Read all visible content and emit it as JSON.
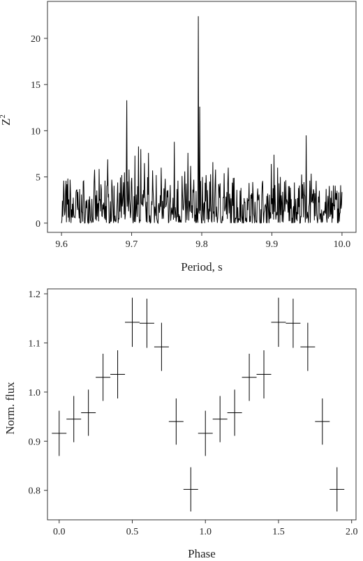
{
  "chart_data": [
    {
      "type": "line",
      "title": "",
      "xlabel": "Period, s",
      "ylabel": "Z",
      "ylabel_superscript": "2",
      "xlim": [
        9.58,
        10.02
      ],
      "ylim": [
        -1.0,
        24.0
      ],
      "xticks": [
        9.6,
        9.7,
        9.8,
        9.9,
        10.0
      ],
      "xtick_labels": [
        "9.6",
        "9.7",
        "9.8",
        "9.9",
        "10.0"
      ],
      "yticks": [
        0,
        5,
        10,
        15,
        20
      ],
      "ytick_labels": [
        "0",
        "5",
        "10",
        "15",
        "20"
      ],
      "grid": false,
      "series": [
        {
          "color": "#000000",
          "x_range": [
            9.6,
            10.0
          ],
          "baseline_level": 1.6,
          "peaks": [
            {
              "x": 9.603,
              "y": 4.6
            },
            {
              "x": 9.606,
              "y": 3.5
            },
            {
              "x": 9.612,
              "y": 4.7
            },
            {
              "x": 9.622,
              "y": 3.6
            },
            {
              "x": 9.632,
              "y": 2.3
            },
            {
              "x": 9.64,
              "y": 2.9
            },
            {
              "x": 9.648,
              "y": 3.4
            },
            {
              "x": 9.656,
              "y": 4.2
            },
            {
              "x": 9.662,
              "y": 4.6
            },
            {
              "x": 9.666,
              "y": 6.9
            },
            {
              "x": 9.672,
              "y": 4.7
            },
            {
              "x": 9.68,
              "y": 4.4
            },
            {
              "x": 9.686,
              "y": 5.2
            },
            {
              "x": 9.693,
              "y": 13.3
            },
            {
              "x": 9.696,
              "y": 5.8
            },
            {
              "x": 9.7,
              "y": 4.9
            },
            {
              "x": 9.705,
              "y": 7.3
            },
            {
              "x": 9.71,
              "y": 8.3
            },
            {
              "x": 9.713,
              "y": 8.0
            },
            {
              "x": 9.718,
              "y": 6.5
            },
            {
              "x": 9.724,
              "y": 7.6
            },
            {
              "x": 9.73,
              "y": 5.7
            },
            {
              "x": 9.735,
              "y": 5.2
            },
            {
              "x": 9.742,
              "y": 6.0
            },
            {
              "x": 9.748,
              "y": 4.8
            },
            {
              "x": 9.755,
              "y": 3.8
            },
            {
              "x": 9.761,
              "y": 8.8
            },
            {
              "x": 9.766,
              "y": 4.6
            },
            {
              "x": 9.772,
              "y": 5.1
            },
            {
              "x": 9.776,
              "y": 5.6
            },
            {
              "x": 9.78,
              "y": 7.6
            },
            {
              "x": 9.784,
              "y": 6.2
            },
            {
              "x": 9.789,
              "y": 4.7
            },
            {
              "x": 9.795,
              "y": 22.4
            },
            {
              "x": 9.797,
              "y": 12.6
            },
            {
              "x": 9.801,
              "y": 5.0
            },
            {
              "x": 9.806,
              "y": 5.2
            },
            {
              "x": 9.811,
              "y": 4.5
            },
            {
              "x": 9.816,
              "y": 6.6
            },
            {
              "x": 9.82,
              "y": 5.8
            },
            {
              "x": 9.826,
              "y": 4.3
            },
            {
              "x": 9.832,
              "y": 5.4
            },
            {
              "x": 9.838,
              "y": 6.0
            },
            {
              "x": 9.846,
              "y": 4.9
            },
            {
              "x": 9.856,
              "y": 3.8
            },
            {
              "x": 9.866,
              "y": 2.5
            },
            {
              "x": 9.876,
              "y": 2.3
            },
            {
              "x": 9.886,
              "y": 2.0
            },
            {
              "x": 9.894,
              "y": 3.2
            },
            {
              "x": 9.899,
              "y": 6.4
            },
            {
              "x": 9.903,
              "y": 7.4
            },
            {
              "x": 9.908,
              "y": 6.0
            },
            {
              "x": 9.912,
              "y": 5.0
            },
            {
              "x": 9.918,
              "y": 4.5
            },
            {
              "x": 9.925,
              "y": 4.0
            },
            {
              "x": 9.932,
              "y": 4.4
            },
            {
              "x": 9.938,
              "y": 3.8
            },
            {
              "x": 9.944,
              "y": 4.2
            },
            {
              "x": 9.949,
              "y": 9.5
            },
            {
              "x": 9.954,
              "y": 4.6
            },
            {
              "x": 9.96,
              "y": 3.4
            },
            {
              "x": 9.968,
              "y": 3.5
            },
            {
              "x": 9.976,
              "y": 2.3
            },
            {
              "x": 9.985,
              "y": 3.5
            },
            {
              "x": 9.992,
              "y": 2.5
            },
            {
              "x": 9.998,
              "y": 4.1
            }
          ]
        }
      ]
    },
    {
      "type": "scatter",
      "title": "",
      "xlabel": "Phase",
      "ylabel": "Norm. flux",
      "xlim": [
        -0.08,
        2.03
      ],
      "ylim": [
        0.74,
        1.21
      ],
      "xticks": [
        0.0,
        0.5,
        1.0,
        1.5,
        2.0
      ],
      "xtick_labels": [
        "0.0",
        "0.5",
        "1.0",
        "1.5",
        "2.0"
      ],
      "yticks": [
        0.8,
        0.9,
        1.0,
        1.1,
        1.2
      ],
      "ytick_labels": [
        "0.8",
        "0.9",
        "1.0",
        "1.1",
        "1.2"
      ],
      "grid": false,
      "marker": "crosshair error bars",
      "x": [
        0.0,
        0.1,
        0.2,
        0.3,
        0.4,
        0.5,
        0.6,
        0.7,
        0.8,
        0.9,
        1.0,
        1.1,
        1.2,
        1.3,
        1.4,
        1.5,
        1.6,
        1.7,
        1.8,
        1.9
      ],
      "x_halfwidth": 0.05,
      "y": [
        0.916,
        0.945,
        0.958,
        1.03,
        1.036,
        1.142,
        1.14,
        1.092,
        0.94,
        0.802,
        0.916,
        0.945,
        0.958,
        1.03,
        1.036,
        1.142,
        1.14,
        1.092,
        0.94,
        0.802
      ],
      "yerr": [
        0.046,
        0.047,
        0.047,
        0.048,
        0.049,
        0.05,
        0.05,
        0.049,
        0.047,
        0.045,
        0.046,
        0.047,
        0.047,
        0.048,
        0.049,
        0.05,
        0.05,
        0.049,
        0.047,
        0.045
      ]
    }
  ]
}
